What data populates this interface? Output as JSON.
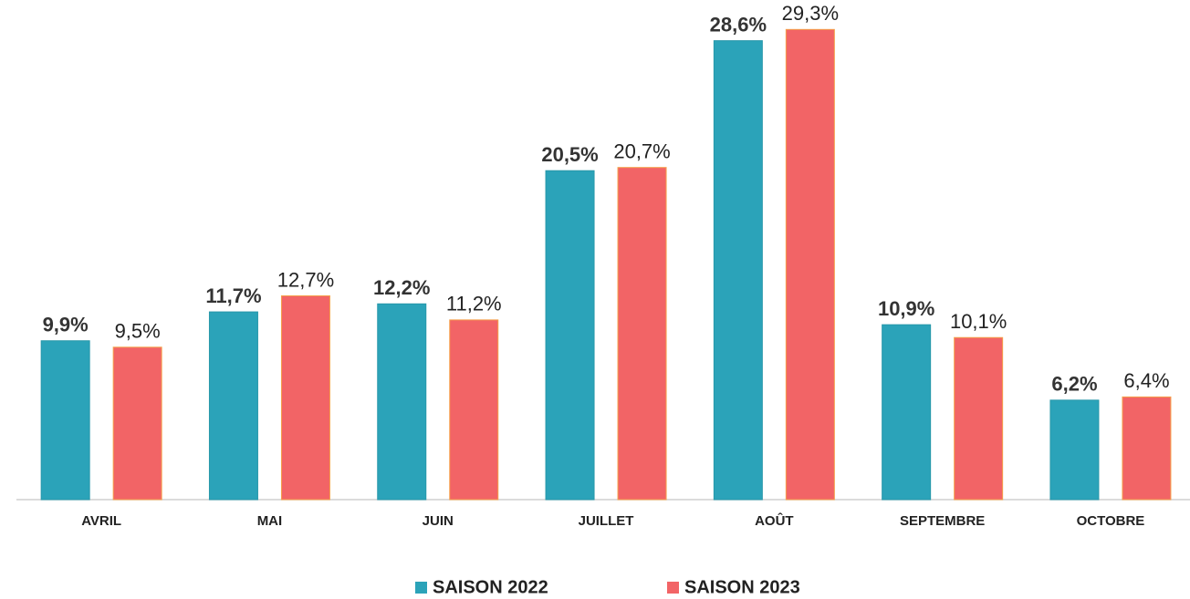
{
  "chart_data": {
    "type": "bar",
    "categories": [
      "AVRIL",
      "MAI",
      "JUIN",
      "JUILLET",
      "AOÛT",
      "SEPTEMBRE",
      "OCTOBRE"
    ],
    "series": [
      {
        "name": "SAISON 2022",
        "color": "#2ba3b9",
        "values": [
          9.9,
          11.7,
          12.2,
          20.5,
          28.6,
          10.9,
          6.2
        ],
        "value_labels": [
          "9,9%",
          "11,7%",
          "12,2%",
          "20,5%",
          "28,6%",
          "10,9%",
          "6,2%"
        ]
      },
      {
        "name": "SAISON 2023",
        "color": "#f26466",
        "values": [
          9.5,
          12.7,
          11.2,
          20.7,
          29.3,
          10.1,
          6.4
        ],
        "value_labels": [
          "9,5%",
          "12,7%",
          "11,2%",
          "20,7%",
          "29,3%",
          "10,1%",
          "6,4%"
        ]
      }
    ]
  }
}
